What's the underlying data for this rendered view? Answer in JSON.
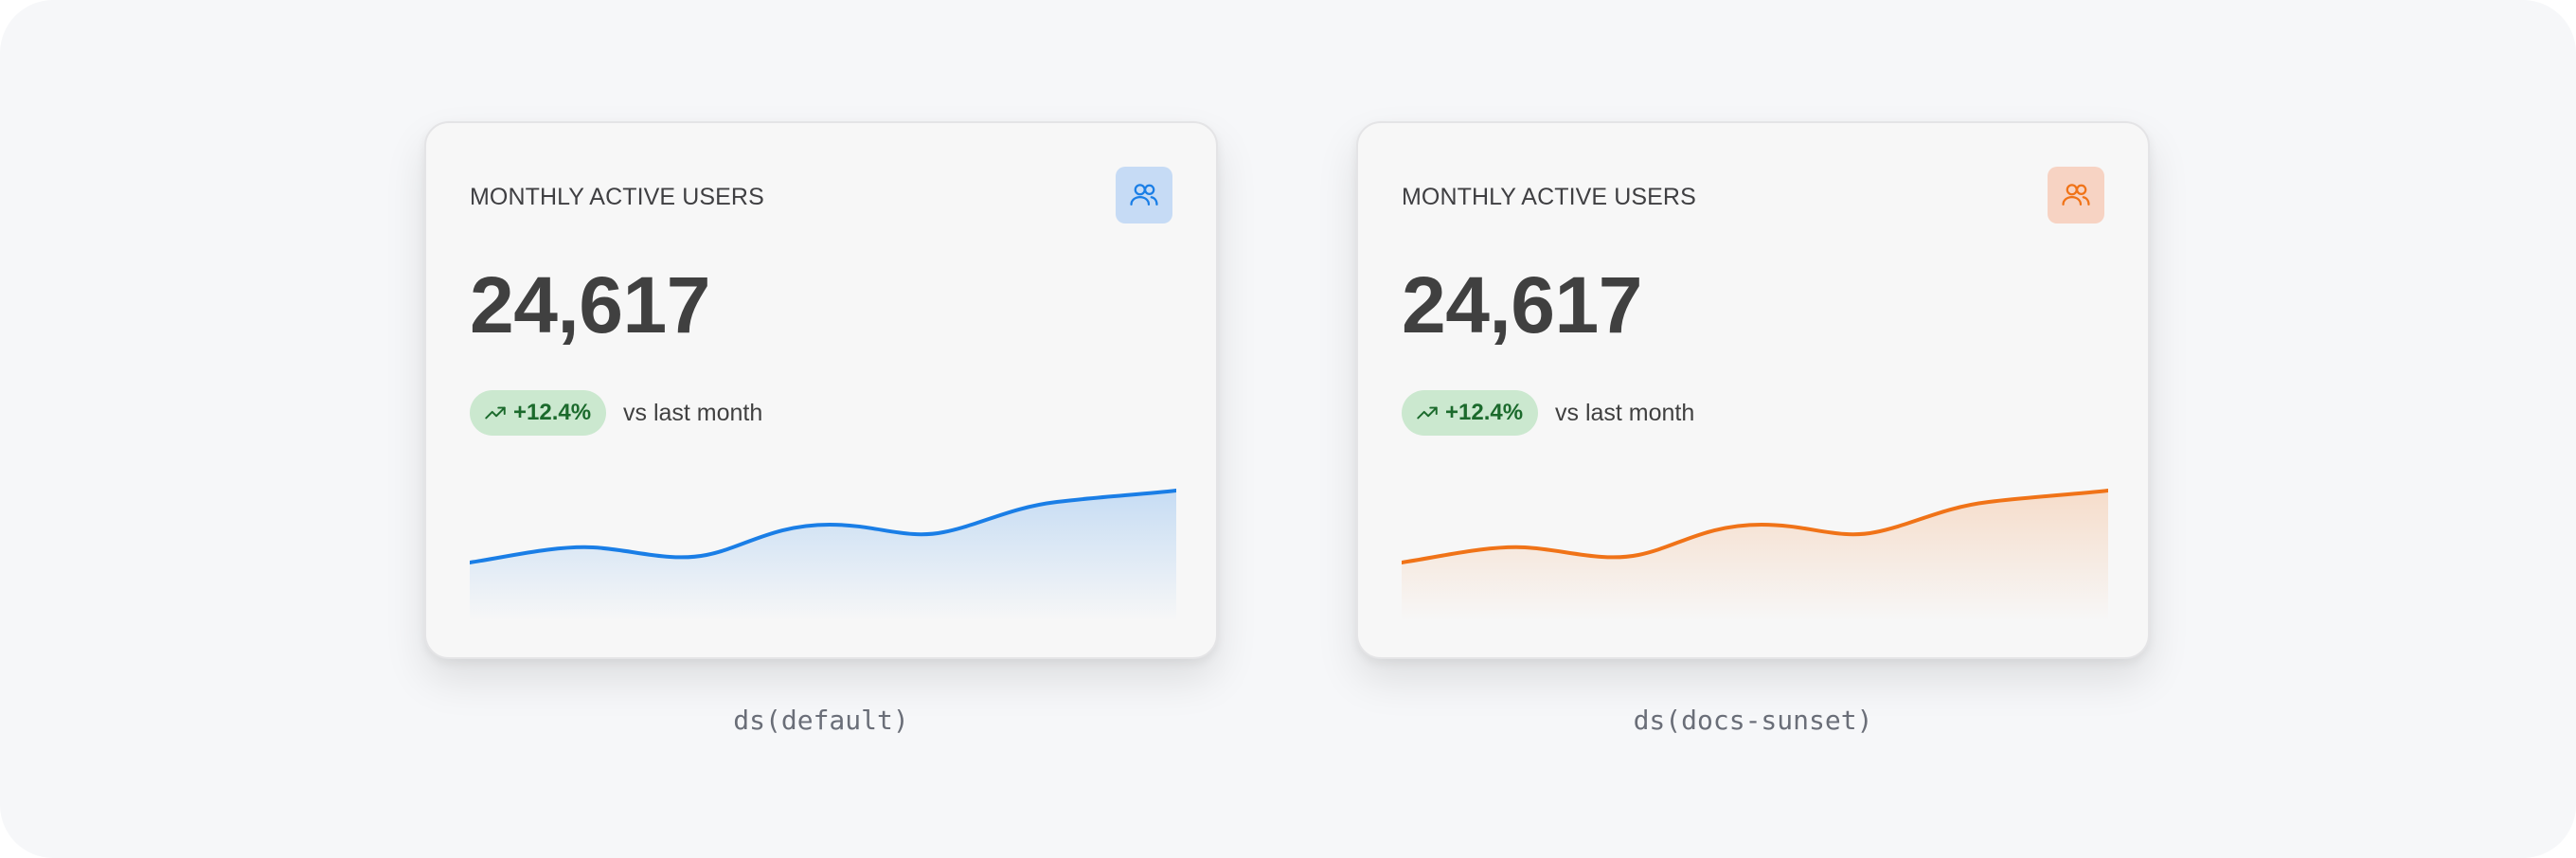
{
  "cards": [
    {
      "title": "MONTHLY ACTIVE USERS",
      "metric": "24,617",
      "change": "+12.4%",
      "compare": "vs last month",
      "icon": "users-icon",
      "accent": "#1a7ee6",
      "icon_bg": "#c6dbf5",
      "caption": "ds(default)"
    },
    {
      "title": "MONTHLY ACTIVE USERS",
      "metric": "24,617",
      "change": "+12.4%",
      "compare": "vs last month",
      "icon": "users-icon",
      "accent": "#f07318",
      "icon_bg": "#f7d3c3",
      "caption": "ds(docs-sunset)"
    }
  ],
  "colors": {
    "badge_bg": "#cbe8cf",
    "badge_text": "#1b6a2c",
    "canvas_bg": "#f6f7f9",
    "card_bg": "#f7f7f7"
  }
}
